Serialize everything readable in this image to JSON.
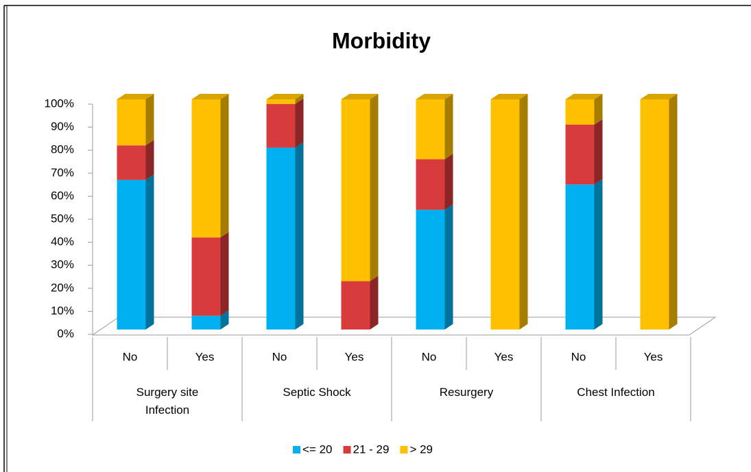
{
  "chart_data": {
    "type": "bar3d_stacked_percent",
    "title": "Morbidity",
    "categories": [
      "No",
      "Yes",
      "No",
      "Yes",
      "No",
      "Yes",
      "No",
      "Yes"
    ],
    "groups": [
      "Surgery site Infection",
      "Septic Shock",
      "Resurgery",
      "Chest Infection"
    ],
    "series": [
      {
        "name": "<= 20",
        "color": "#00b0f0",
        "values": [
          65,
          6,
          79,
          0,
          52,
          0,
          63,
          0
        ]
      },
      {
        "name": "21 - 29",
        "color": "#d83b3b",
        "values": [
          15,
          34,
          19,
          21,
          22,
          0,
          26,
          0
        ]
      },
      {
        "name": "> 29",
        "color": "#ffc000",
        "values": [
          20,
          60,
          2,
          79,
          26,
          100,
          11,
          100
        ]
      }
    ],
    "ylim": [
      0,
      100
    ],
    "yticks": [
      {
        "value": 0,
        "label": "0%"
      },
      {
        "value": 10,
        "label": "10%"
      },
      {
        "value": 20,
        "label": "20%"
      },
      {
        "value": 30,
        "label": "30%"
      },
      {
        "value": 40,
        "label": "40%"
      },
      {
        "value": 50,
        "label": "50%"
      },
      {
        "value": 60,
        "label": "60%"
      },
      {
        "value": 70,
        "label": "70%"
      },
      {
        "value": 80,
        "label": "80%"
      },
      {
        "value": 90,
        "label": "90%"
      },
      {
        "value": 100,
        "label": "100%"
      }
    ],
    "legend": "bottom"
  }
}
